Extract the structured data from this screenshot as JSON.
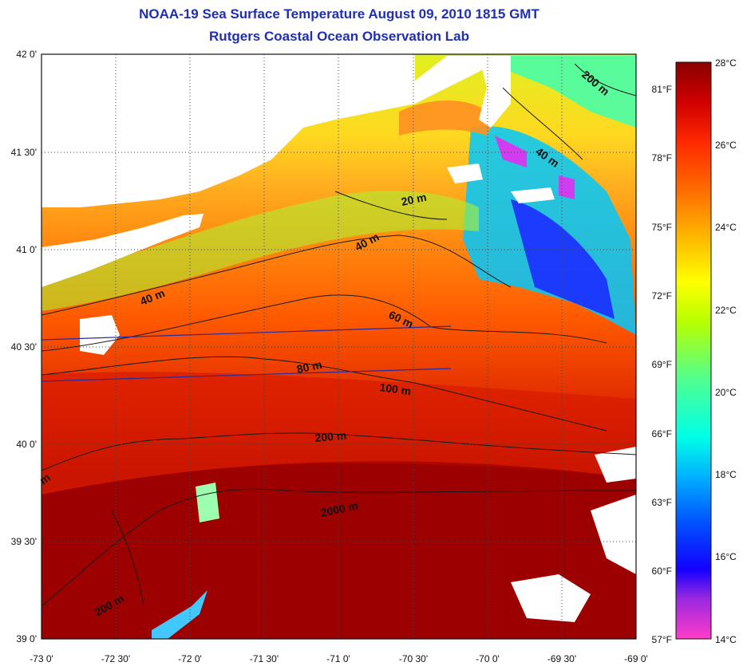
{
  "title": "NOAA-19 Sea Surface Temperature August 09, 2010 1815 GMT",
  "subtitle": "Rutgers Coastal Ocean Observation Lab",
  "map": {
    "lon_range": [
      -73,
      -69
    ],
    "lat_range": [
      39,
      42
    ],
    "lon_ticks": [
      "-73 0'",
      "-72 30'",
      "-72 0'",
      "-71 30'",
      "-71 0'",
      "-70 30'",
      "-70 0'",
      "-69 30'",
      "-69 0'"
    ],
    "lat_ticks": [
      "39 0'",
      "39 30'",
      "40 0'",
      "40 30'",
      "41 0'",
      "41 30'",
      "42 0'"
    ],
    "grid": "dotted",
    "land_color": "#ffffff",
    "cloud_color": "#ffffff"
  },
  "contours": [
    {
      "label": "20 m"
    },
    {
      "label": "40 m"
    },
    {
      "label": "40 m"
    },
    {
      "label": "40 m"
    },
    {
      "label": "60 m"
    },
    {
      "label": "80 m"
    },
    {
      "label": "100 m"
    },
    {
      "label": "200 m"
    },
    {
      "label": "200 m"
    },
    {
      "label": "200 m"
    },
    {
      "label": "2000 m"
    },
    {
      "label": "m"
    }
  ],
  "colorbar": {
    "celsius": [
      "28°C",
      "26°C",
      "24°C",
      "22°C",
      "20°C",
      "18°C",
      "16°C",
      "14°C"
    ],
    "fahrenheit": [
      "81°F",
      "78°F",
      "75°F",
      "72°F",
      "69°F",
      "66°F",
      "63°F",
      "60°F",
      "57°F"
    ],
    "colors": [
      "#ff00ff",
      "#8a2be2",
      "#0000ff",
      "#0060ff",
      "#00b4ff",
      "#00ffff",
      "#55ff90",
      "#b0ff00",
      "#ffff00",
      "#ffc000",
      "#ff8000",
      "#ff4000",
      "#e00000",
      "#900000"
    ]
  }
}
